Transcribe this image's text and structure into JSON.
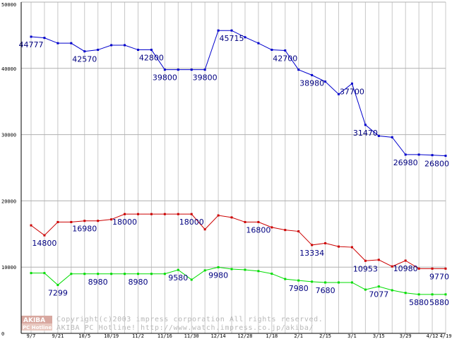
{
  "chart_data": {
    "type": "line",
    "title": "",
    "xlabel": "",
    "ylabel": "",
    "ylim": [
      0,
      50000
    ],
    "yticks": [
      0,
      10000,
      20000,
      30000,
      40000,
      50000
    ],
    "grid": true,
    "legend": "none",
    "x_ticks": [
      "9/7",
      "9/21",
      "10/5",
      "10/19",
      "11/2",
      "11/16",
      "11/30",
      "12/14",
      "12/28",
      "1/18",
      "2/1",
      "2/15",
      "3/1",
      "3/15",
      "3/29",
      "4/12",
      "4/19"
    ],
    "x_tick_index": [
      0,
      2,
      4,
      6,
      8,
      10,
      12,
      14,
      16,
      18,
      20,
      22,
      24,
      26,
      28,
      30,
      31
    ],
    "series": [
      {
        "color": "#0000cc",
        "values": [
          44777,
          44600,
          43800,
          43800,
          42570,
          42800,
          43500,
          43500,
          42800,
          42800,
          39800,
          39800,
          39800,
          39800,
          45715,
          45715,
          44700,
          43800,
          42800,
          42700,
          39800,
          38980,
          38000,
          36100,
          37700,
          31470,
          29800,
          29600,
          26980,
          26980,
          26900,
          26800
        ],
        "labels": [
          {
            "i": 0,
            "text": "44777"
          },
          {
            "i": 4,
            "text": "42570"
          },
          {
            "i": 9,
            "text": "42800"
          },
          {
            "i": 10,
            "text": "39800"
          },
          {
            "i": 13,
            "text": "39800"
          },
          {
            "i": 15,
            "text": "45715"
          },
          {
            "i": 19,
            "text": "42700"
          },
          {
            "i": 21,
            "text": "38980"
          },
          {
            "i": 24,
            "text": "37700"
          },
          {
            "i": 25,
            "text": "31470"
          },
          {
            "i": 28,
            "text": "26980"
          },
          {
            "i": 31,
            "text": "26800"
          }
        ]
      },
      {
        "color": "#cc0000",
        "values": [
          16300,
          14800,
          16800,
          16800,
          16980,
          16980,
          17200,
          18000,
          18000,
          18000,
          18000,
          18000,
          18000,
          15700,
          17800,
          17500,
          16800,
          16800,
          16000,
          15600,
          15400,
          13334,
          13600,
          13100,
          13000,
          10953,
          11100,
          10100,
          10980,
          9770,
          9770,
          9770
        ],
        "labels": [
          {
            "i": 1,
            "text": "14800"
          },
          {
            "i": 4,
            "text": "16980"
          },
          {
            "i": 7,
            "text": "18000"
          },
          {
            "i": 12,
            "text": "18000"
          },
          {
            "i": 17,
            "text": "16800"
          },
          {
            "i": 21,
            "text": "13334"
          },
          {
            "i": 25,
            "text": "10953"
          },
          {
            "i": 28,
            "text": "10980"
          },
          {
            "i": 31,
            "text": "9770"
          }
        ]
      },
      {
        "color": "#00dd00",
        "values": [
          9100,
          9100,
          7299,
          8980,
          8980,
          8980,
          8980,
          8980,
          8980,
          8980,
          8980,
          9580,
          8100,
          9500,
          9980,
          9700,
          9600,
          9400,
          9000,
          8200,
          7980,
          7800,
          7680,
          7680,
          7680,
          6600,
          7077,
          6500,
          6100,
          5880,
          5880,
          5880
        ],
        "labels": [
          {
            "i": 2,
            "text": "7299"
          },
          {
            "i": 5,
            "text": "8980"
          },
          {
            "i": 8,
            "text": "8980"
          },
          {
            "i": 11,
            "text": "9580"
          },
          {
            "i": 14,
            "text": "9980"
          },
          {
            "i": 20,
            "text": "7980"
          },
          {
            "i": 22,
            "text": "7680"
          },
          {
            "i": 26,
            "text": "7077"
          },
          {
            "i": 29,
            "text": "5880"
          },
          {
            "i": 31,
            "text": "5880"
          }
        ]
      }
    ]
  },
  "watermark": {
    "copyright": "Copyright(c)2003 impress corporation All rights reserved.",
    "site": "AKIBA PC Hotline!  http://www.watch.impress.co.jp/akiba/",
    "logo_top": "AKIBA",
    "logo_bottom": "PC Hotline"
  }
}
